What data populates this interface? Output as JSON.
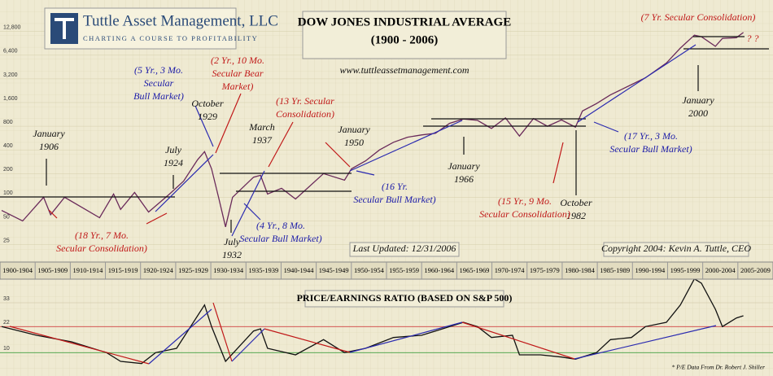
{
  "brand": {
    "name": "Tuttle Asset Management, LLC",
    "tagline": "CHARTING A COURSE TO PROFITABILITY"
  },
  "chart_data": [
    {
      "type": "line",
      "title": "DOW JONES INDUSTRIAL AVERAGE",
      "subtitle": "(1900 - 2006)",
      "log_scale": true,
      "color": "#6a2a5a",
      "x": [
        1900,
        1903,
        1906,
        1907,
        1909,
        1914,
        1916,
        1917,
        1919,
        1921,
        1924,
        1926,
        1928,
        1929,
        1930,
        1931,
        1932,
        1933,
        1936,
        1937,
        1938,
        1940,
        1942,
        1946,
        1949,
        1950,
        1952,
        1954,
        1956,
        1958,
        1960,
        1962,
        1964,
        1966,
        1968,
        1970,
        1972,
        1974,
        1976,
        1978,
        1980,
        1982,
        1983,
        1985,
        1987,
        1990,
        1992,
        1995,
        1997,
        1999,
        2000,
        2002,
        2003,
        2005,
        2006
      ],
      "values": [
        68,
        50,
        100,
        60,
        100,
        55,
        110,
        70,
        115,
        65,
        110,
        160,
        300,
        380,
        230,
        100,
        42,
        100,
        180,
        190,
        110,
        130,
        95,
        200,
        165,
        230,
        290,
        400,
        500,
        580,
        620,
        650,
        870,
        990,
        950,
        750,
        1020,
        600,
        1000,
        800,
        960,
        780,
        1250,
        1550,
        2000,
        2700,
        3300,
        5100,
        7900,
        11500,
        11000,
        8300,
        10450,
        10700,
        12460
      ],
      "xlim": [
        1900,
        2010
      ],
      "ylim": [
        15,
        20000
      ],
      "yticks": [
        25,
        50,
        100,
        200,
        400,
        800,
        {
          "value": 1600,
          "label": "1,600"
        },
        {
          "value": 3200,
          "label": "3,200"
        },
        {
          "value": 6400,
          "label": "6,400"
        },
        {
          "value": 12800,
          "label": "12,800"
        }
      ],
      "x_period_labels": [
        "1900-1904",
        "1905-1909",
        "1910-1914",
        "1915-1919",
        "1920-1924",
        "1925-1929",
        "1930-1934",
        "1935-1939",
        "1940-1944",
        "1945-1949",
        "1950-1954",
        "1955-1959",
        "1960-1964",
        "1965-1969",
        "1970-1974",
        "1975-1979",
        "1980-1984",
        "1985-1989",
        "1990-1994",
        "1995-1999",
        "2000-2004",
        "2005-2009"
      ],
      "annotations": [
        {
          "lines": [
            "January",
            "1906"
          ],
          "color": "#111"
        },
        {
          "lines": [
            "July",
            "1924"
          ],
          "color": "#111"
        },
        {
          "lines": [
            "October",
            "1929"
          ],
          "color": "#111"
        },
        {
          "lines": [
            "March",
            "1937"
          ],
          "color": "#111"
        },
        {
          "lines": [
            "January",
            "1950"
          ],
          "color": "#111"
        },
        {
          "lines": [
            "January",
            "1966"
          ],
          "color": "#111"
        },
        {
          "lines": [
            "October",
            "1982"
          ],
          "color": "#111"
        },
        {
          "lines": [
            "January",
            "2000"
          ],
          "color": "#111"
        },
        {
          "lines": [
            "July",
            "1932"
          ],
          "color": "#111"
        },
        {
          "lines": [
            "(5 Yr., 3 Mo.",
            "Secular",
            "Bull Market)"
          ],
          "color": "#1a1aa8"
        },
        {
          "lines": [
            "(2 Yr., 10 Mo.",
            "Secular Bear",
            "Market)"
          ],
          "color": "#c01818"
        },
        {
          "lines": [
            "(13 Yr. Secular",
            "Consolidation)"
          ],
          "color": "#c01818"
        },
        {
          "lines": [
            "(18 Yr., 7 Mo.",
            "Secular Consolidation)"
          ],
          "color": "#c01818"
        },
        {
          "lines": [
            "(4 Yr., 8 Mo.",
            "Secular Bull Market)"
          ],
          "color": "#1a1aa8"
        },
        {
          "lines": [
            "(16 Yr.",
            "Secular Bull Market)"
          ],
          "color": "#1a1aa8"
        },
        {
          "lines": [
            "(15 Yr., 9 Mo.",
            "Secular Consolidation)"
          ],
          "color": "#c01818"
        },
        {
          "lines": [
            "(17 Yr., 3 Mo.",
            "Secular Bull Market)"
          ],
          "color": "#1a1aa8"
        },
        {
          "lines": [
            "(7 Yr. Secular Consolidation)"
          ],
          "color": "#c01818"
        },
        {
          "lines": [
            "? ?"
          ],
          "color": "#c01818"
        },
        {
          "lines": [
            "www.tuttleassetmanagement.com"
          ],
          "color": "#111"
        },
        {
          "lines": [
            "Last Updated: 12/31/2006"
          ],
          "color": "#111"
        },
        {
          "lines": [
            "Copyright 2004: Kevin A. Tuttle, CEO"
          ],
          "color": "#111"
        }
      ]
    },
    {
      "type": "line",
      "title": "PRICE/EARNINGS RATIO (BASED ON S&P 500)",
      "color": "#111",
      "x": [
        1900,
        1905,
        1910,
        1915,
        1917,
        1920,
        1922,
        1925,
        1929,
        1930,
        1932,
        1934,
        1936,
        1937,
        1938,
        1942,
        1946,
        1949,
        1952,
        1956,
        1960,
        1962,
        1966,
        1968,
        1970,
        1973,
        1974,
        1977,
        1980,
        1982,
        1985,
        1987,
        1990,
        1992,
        1995,
        1997,
        1999,
        2000,
        2002,
        2003,
        2005,
        2006
      ],
      "values": [
        22,
        18,
        15,
        10,
        6,
        5,
        10,
        12,
        32,
        22,
        6,
        13,
        20,
        21,
        12,
        9,
        16,
        10,
        12,
        17,
        18,
        20,
        24,
        22,
        17,
        18,
        9,
        9,
        8,
        7,
        10,
        16,
        17,
        22,
        24,
        32,
        44,
        42,
        30,
        22,
        26,
        27
      ],
      "xlim": [
        1900,
        2010
      ],
      "ylim": [
        0,
        45
      ],
      "yticks": [
        10,
        22,
        33
      ],
      "footnote": "* P/E Data From Dr. Robert J. Shiller"
    }
  ]
}
